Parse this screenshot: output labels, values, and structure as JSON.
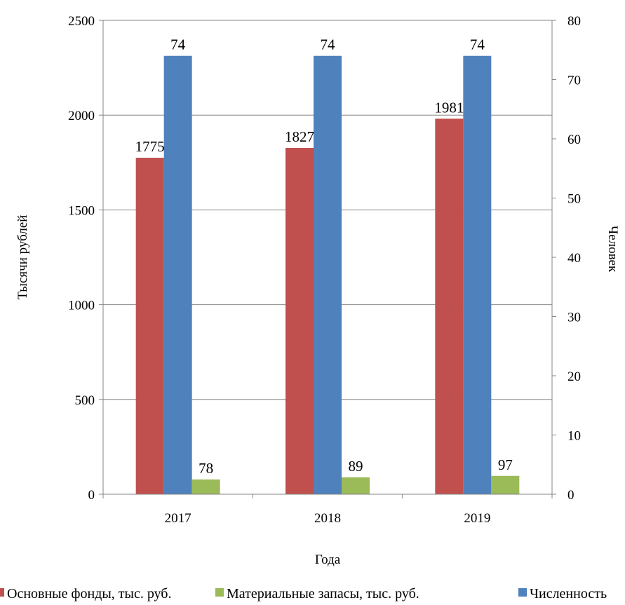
{
  "chart_data": {
    "type": "bar",
    "categories": [
      "2017",
      "2018",
      "2019"
    ],
    "xlabel": "Года",
    "ylabel": "Тысячи рублей",
    "y2label": "Человек",
    "ylim": [
      0,
      2500
    ],
    "y2lim": [
      0,
      80
    ],
    "yticks": [
      "0",
      "500",
      "1000",
      "1500",
      "2000",
      "2500"
    ],
    "y2ticks": [
      "0",
      "10",
      "20",
      "30",
      "40",
      "50",
      "60",
      "70",
      "80"
    ],
    "grid": true,
    "legend_position": "bottom",
    "series": [
      {
        "name": "Основные фонды, тыс. руб.",
        "axis": "left",
        "color": "#C0504D",
        "values": [
          1775,
          1827,
          1981
        ],
        "labels": [
          "1775",
          "1827",
          "1981"
        ]
      },
      {
        "name": "Численность",
        "axis": "right",
        "color": "#4F81BD",
        "values": [
          74,
          74,
          74
        ],
        "labels": [
          "74",
          "74",
          "74"
        ]
      },
      {
        "name": "Материальные запасы, тыс. руб.",
        "axis": "left",
        "color": "#9BBB59",
        "values": [
          78,
          89,
          97
        ],
        "labels": [
          "78",
          "89",
          "97"
        ]
      }
    ],
    "legend_order": [
      0,
      2,
      1
    ]
  }
}
